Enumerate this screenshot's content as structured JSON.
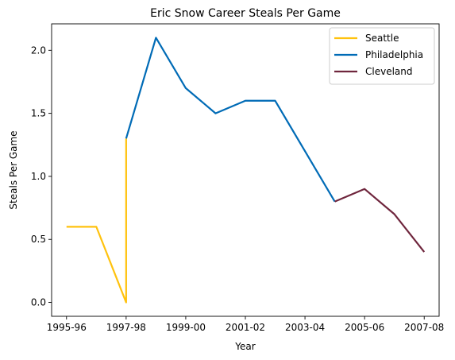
{
  "chart_data": {
    "type": "line",
    "title": "Eric Snow Career Steals Per Game",
    "xlabel": "Year",
    "ylabel": "Steals Per Game",
    "categories": [
      "1995-96",
      "1996-97",
      "1997-98",
      "1998-99",
      "1999-00",
      "2000-01",
      "2001-02",
      "2002-03",
      "2003-04",
      "2004-05",
      "2005-06",
      "2006-07",
      "2007-08"
    ],
    "x_tick_labels": [
      "1995-96",
      "1997-98",
      "1999-00",
      "2001-02",
      "2003-04",
      "2005-06",
      "2007-08"
    ],
    "y_ticks": [
      "0.0",
      "0.5",
      "1.0",
      "1.5",
      "2.0"
    ],
    "ylim": [
      -0.11,
      2.21
    ],
    "legend": "top-right",
    "grid": false,
    "series": [
      {
        "name": "Seattle",
        "color": "#FFC20E",
        "points": [
          {
            "x": "1995-96",
            "y": 0.6
          },
          {
            "x": "1996-97",
            "y": 0.6
          },
          {
            "x": "1997-98",
            "y": 0.0
          },
          {
            "x": "1997-98",
            "y": 1.3
          }
        ]
      },
      {
        "name": "Philadelphia",
        "color": "#006BB6",
        "points": [
          {
            "x": "1997-98",
            "y": 1.3
          },
          {
            "x": "1998-99",
            "y": 2.1
          },
          {
            "x": "1999-00",
            "y": 1.7
          },
          {
            "x": "2000-01",
            "y": 1.5
          },
          {
            "x": "2001-02",
            "y": 1.6
          },
          {
            "x": "2002-03",
            "y": 1.6
          },
          {
            "x": "2003-04",
            "y": 1.2
          },
          {
            "x": "2004-05",
            "y": 0.8
          }
        ]
      },
      {
        "name": "Cleveland",
        "color": "#6F263D",
        "points": [
          {
            "x": "2004-05",
            "y": 0.8
          },
          {
            "x": "2005-06",
            "y": 0.9
          },
          {
            "x": "2006-07",
            "y": 0.7
          },
          {
            "x": "2007-08",
            "y": 0.4
          }
        ]
      }
    ]
  }
}
